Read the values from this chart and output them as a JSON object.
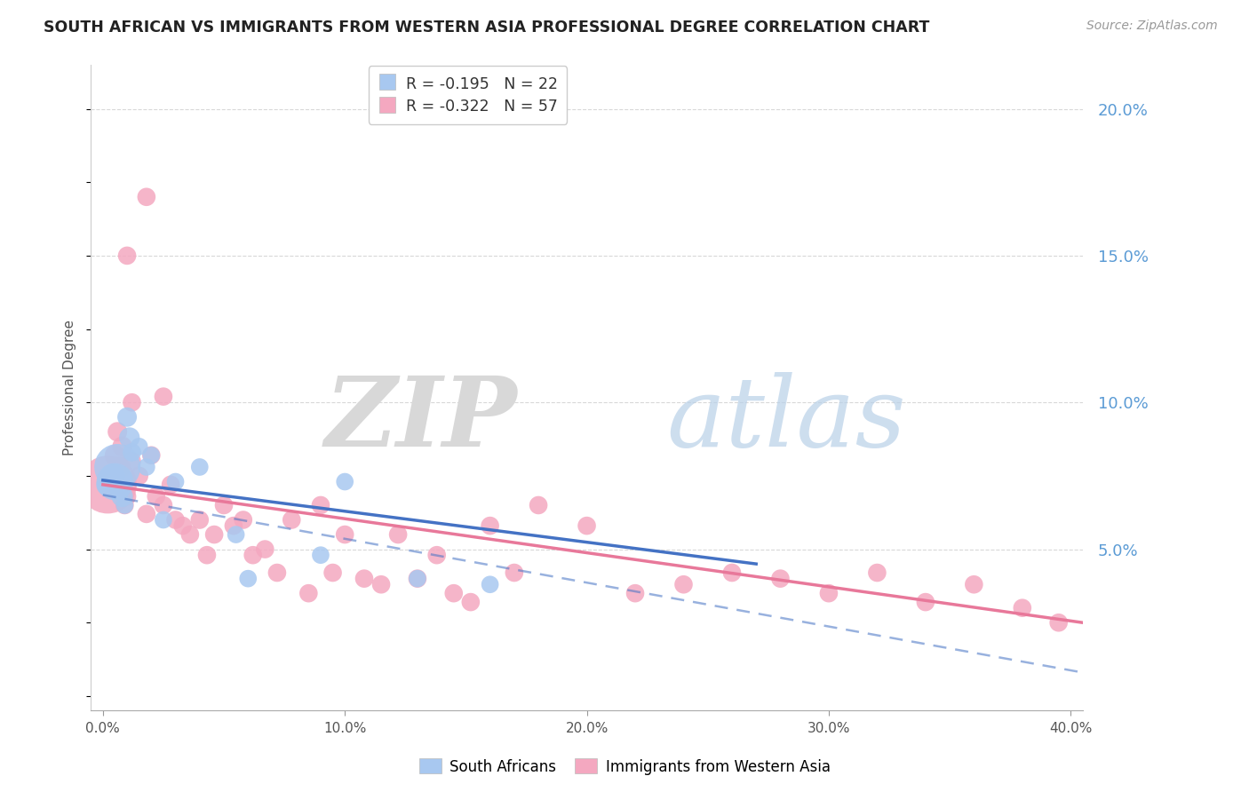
{
  "title": "SOUTH AFRICAN VS IMMIGRANTS FROM WESTERN ASIA PROFESSIONAL DEGREE CORRELATION CHART",
  "source": "Source: ZipAtlas.com",
  "ylabel": "Professional Degree",
  "ytick_labels": [
    "20.0%",
    "15.0%",
    "10.0%",
    "5.0%"
  ],
  "ytick_values": [
    0.2,
    0.15,
    0.1,
    0.05
  ],
  "xtick_values": [
    0.0,
    0.1,
    0.2,
    0.3,
    0.4
  ],
  "xtick_labels": [
    "0.0%",
    "10.0%",
    "20.0%",
    "30.0%",
    "40.0%"
  ],
  "xlim": [
    -0.005,
    0.405
  ],
  "ylim": [
    -0.005,
    0.215
  ],
  "blue_R": "-0.195",
  "blue_N": "22",
  "pink_R": "-0.322",
  "pink_N": "57",
  "blue_color": "#a8c8f0",
  "pink_color": "#f4a8c0",
  "blue_line_color": "#4472c4",
  "pink_line_color": "#e8789a",
  "legend_label_blue": "South Africans",
  "legend_label_pink": "Immigrants from Western Asia",
  "blue_scatter_x": [
    0.002,
    0.004,
    0.005,
    0.006,
    0.007,
    0.008,
    0.009,
    0.01,
    0.011,
    0.012,
    0.015,
    0.018,
    0.02,
    0.025,
    0.03,
    0.04,
    0.055,
    0.06,
    0.09,
    0.1,
    0.13,
    0.16
  ],
  "blue_scatter_y": [
    0.072,
    0.075,
    0.073,
    0.078,
    0.07,
    0.068,
    0.065,
    0.095,
    0.088,
    0.083,
    0.085,
    0.078,
    0.082,
    0.06,
    0.073,
    0.078,
    0.055,
    0.04,
    0.048,
    0.073,
    0.04,
    0.038
  ],
  "blue_scatter_size": [
    350,
    400,
    900,
    1400,
    250,
    300,
    200,
    250,
    280,
    220,
    200,
    200,
    200,
    200,
    200,
    200,
    200,
    200,
    200,
    200,
    200,
    200
  ],
  "pink_scatter_x": [
    0.002,
    0.004,
    0.005,
    0.006,
    0.007,
    0.008,
    0.009,
    0.01,
    0.012,
    0.015,
    0.018,
    0.02,
    0.022,
    0.025,
    0.028,
    0.03,
    0.033,
    0.036,
    0.04,
    0.043,
    0.046,
    0.05,
    0.054,
    0.058,
    0.062,
    0.067,
    0.072,
    0.078,
    0.085,
    0.09,
    0.095,
    0.1,
    0.108,
    0.115,
    0.122,
    0.13,
    0.138,
    0.145,
    0.152,
    0.16,
    0.17,
    0.18,
    0.2,
    0.22,
    0.24,
    0.26,
    0.28,
    0.3,
    0.32,
    0.34,
    0.36,
    0.38,
    0.395,
    0.025,
    0.018,
    0.012,
    0.01
  ],
  "pink_scatter_y": [
    0.072,
    0.075,
    0.082,
    0.09,
    0.078,
    0.085,
    0.065,
    0.068,
    0.08,
    0.075,
    0.062,
    0.082,
    0.068,
    0.065,
    0.072,
    0.06,
    0.058,
    0.055,
    0.06,
    0.048,
    0.055,
    0.065,
    0.058,
    0.06,
    0.048,
    0.05,
    0.042,
    0.06,
    0.035,
    0.065,
    0.042,
    0.055,
    0.04,
    0.038,
    0.055,
    0.04,
    0.048,
    0.035,
    0.032,
    0.058,
    0.042,
    0.065,
    0.058,
    0.035,
    0.038,
    0.042,
    0.04,
    0.035,
    0.042,
    0.032,
    0.038,
    0.03,
    0.025,
    0.102,
    0.17,
    0.1,
    0.15
  ],
  "pink_scatter_size": [
    2200,
    350,
    280,
    250,
    280,
    260,
    220,
    220,
    220,
    220,
    220,
    220,
    220,
    220,
    220,
    220,
    220,
    220,
    220,
    220,
    220,
    220,
    220,
    220,
    220,
    220,
    220,
    220,
    220,
    220,
    220,
    220,
    220,
    220,
    220,
    220,
    220,
    220,
    220,
    220,
    220,
    220,
    220,
    220,
    220,
    220,
    220,
    220,
    220,
    220,
    220,
    220,
    220,
    220,
    220,
    220,
    220
  ],
  "blue_line_start_x": 0.0,
  "blue_line_end_x": 0.27,
  "blue_line_start_y": 0.0735,
  "blue_line_end_y": 0.045,
  "pink_line_start_x": 0.0,
  "pink_line_end_x": 0.405,
  "pink_line_start_y": 0.072,
  "pink_line_end_y": 0.025,
  "dashed_line_start_x": 0.0,
  "dashed_line_end_x": 0.405,
  "dashed_line_start_y": 0.0685,
  "dashed_line_end_y": 0.008
}
